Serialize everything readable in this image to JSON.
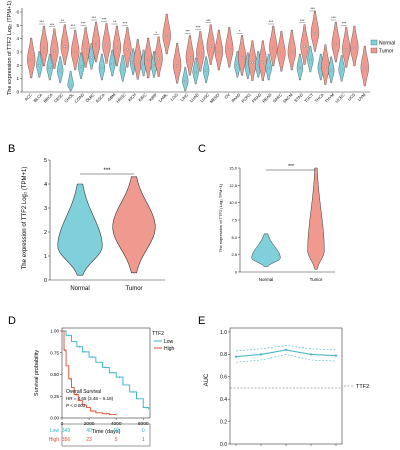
{
  "colors": {
    "normal": "#7fd0db",
    "tumor": "#f09a8f",
    "axis": "#333333",
    "km_low": "#2fb3c6",
    "km_high": "#e24a33",
    "auc_line": "#4fb7c7"
  },
  "panels": {
    "A": {
      "letter": "A"
    },
    "B": {
      "letter": "B"
    },
    "C": {
      "letter": "C"
    },
    "D": {
      "letter": "D"
    },
    "E": {
      "letter": "E"
    }
  },
  "chart_data": [
    {
      "id": "A",
      "type": "violin",
      "ylabel": "The expression of TTF2 Log₂ (TPM+1)",
      "legend": {
        "position": "right",
        "entries": [
          "Normal",
          "Tumor"
        ]
      },
      "yticks": [
        "0",
        "1",
        "2",
        "3",
        "4",
        "5",
        "6"
      ],
      "ylim": [
        0,
        6
      ],
      "categories": [
        "ACC",
        "BLCA",
        "BRCA",
        "CESC",
        "CHOL",
        "COAD",
        "DLBC",
        "ESCA",
        "GBM",
        "HNSC",
        "KICH",
        "KIRC",
        "KIRP",
        "LAML",
        "LGG",
        "LIHC",
        "LUAD",
        "LUSC",
        "MESO",
        "OV",
        "PAAD",
        "PCPG",
        "PRAD",
        "READ",
        "SARC",
        "SKCM",
        "STAD",
        "TGCT",
        "THCA",
        "THYM",
        "UCEC",
        "UCS",
        "UVM"
      ],
      "groups": [
        {
          "cat": "ACC",
          "sig": "",
          "normal": null,
          "tumor": 2.4
        },
        {
          "cat": "BLCA",
          "sig": "***",
          "normal": 2.0,
          "tumor": 3.3
        },
        {
          "cat": "BRCA",
          "sig": "***",
          "normal": 1.8,
          "tumor": 3.1
        },
        {
          "cat": "CESC",
          "sig": "**",
          "normal": 1.6,
          "tumor": 3.4
        },
        {
          "cat": "CHOL",
          "sig": "***",
          "normal": 0.5,
          "tumor": 3.0
        },
        {
          "cat": "COAD",
          "sig": "***",
          "normal": 1.9,
          "tumor": 3.2
        },
        {
          "cat": "DLBC",
          "sig": "***",
          "normal": 2.6,
          "tumor": 3.6
        },
        {
          "cat": "ESCA",
          "sig": "***",
          "normal": 1.8,
          "tumor": 3.5
        },
        {
          "cat": "GBM",
          "sig": "**",
          "normal": 2.1,
          "tumor": 3.3
        },
        {
          "cat": "HNSC",
          "sig": "***",
          "normal": 1.7,
          "tumor": 3.2
        },
        {
          "cat": "KICH",
          "sig": "",
          "normal": 2.2,
          "tumor": 2.3
        },
        {
          "cat": "KIRC",
          "sig": "",
          "normal": 2.1,
          "tumor": 2.4
        },
        {
          "cat": "KIRP",
          "sig": "*",
          "normal": 2.0,
          "tumor": 2.5
        },
        {
          "cat": "LAML",
          "sig": "",
          "normal": null,
          "tumor": 4.2
        },
        {
          "cat": "LGG",
          "sig": "",
          "normal": null,
          "tumor": 2.0
        },
        {
          "cat": "LIHC",
          "sig": "***",
          "normal": 0.8,
          "tumor": 2.6
        },
        {
          "cat": "LUAD",
          "sig": "***",
          "normal": 1.5,
          "tumor": 2.9
        },
        {
          "cat": "LUSC",
          "sig": "***",
          "normal": 1.6,
          "tumor": 3.4
        },
        {
          "cat": "MESO",
          "sig": "",
          "normal": null,
          "tumor": 3.0
        },
        {
          "cat": "OV",
          "sig": "",
          "normal": null,
          "tumor": 3.2
        },
        {
          "cat": "PAAD",
          "sig": "*",
          "normal": 2.0,
          "tumor": 2.6
        },
        {
          "cat": "PCPG",
          "sig": "",
          "normal": 1.9,
          "tumor": 2.2
        },
        {
          "cat": "PRAD",
          "sig": "",
          "normal": 2.0,
          "tumor": 2.2
        },
        {
          "cat": "READ",
          "sig": "***",
          "normal": 1.8,
          "tumor": 3.3
        },
        {
          "cat": "SARC",
          "sig": "",
          "normal": null,
          "tumor": 2.9
        },
        {
          "cat": "SKCM",
          "sig": "",
          "normal": null,
          "tumor": 3.0
        },
        {
          "cat": "STAD",
          "sig": "***",
          "normal": 1.8,
          "tumor": 3.4
        },
        {
          "cat": "TGCT",
          "sig": "***",
          "normal": 2.4,
          "tumor": 4.4
        },
        {
          "cat": "THCA",
          "sig": "",
          "normal": 1.8,
          "tumor": 1.9
        },
        {
          "cat": "THYM",
          "sig": "***",
          "normal": 1.6,
          "tumor": 3.6
        },
        {
          "cat": "UCEC",
          "sig": "***",
          "normal": 1.7,
          "tumor": 3.2
        },
        {
          "cat": "UCS",
          "sig": "",
          "normal": null,
          "tumor": 3.3
        },
        {
          "cat": "UVM",
          "sig": "",
          "normal": null,
          "tumor": 1.8
        }
      ]
    },
    {
      "id": "B",
      "type": "violin",
      "ylabel": "The expression of TTF2 Log₂ (TPM+1)",
      "yticks": [
        "0",
        "1",
        "2",
        "3",
        "4",
        "5"
      ],
      "ylim": [
        0,
        5
      ],
      "categories": [
        "Normal",
        "Tumor"
      ],
      "median": [
        1.4,
        2.2
      ],
      "range": [
        [
          0.2,
          4.0
        ],
        [
          0.3,
          4.3
        ]
      ],
      "sig": "***"
    },
    {
      "id": "C",
      "type": "violin",
      "ylabel": "The expression of TTF2 (Log₂ TPM+1)",
      "yticks": [
        "0",
        "2.5",
        "5.0",
        "7.5",
        "10.0",
        "12.5",
        "15.0"
      ],
      "ylim": [
        0,
        15
      ],
      "categories": [
        "Normal",
        "Tumor"
      ],
      "median": [
        2.0,
        3.0
      ],
      "range": [
        [
          0.8,
          5.5
        ],
        [
          0.4,
          15.0
        ]
      ],
      "sig": "***"
    },
    {
      "id": "D",
      "type": "line",
      "ylabel": "Survival probability",
      "xlabel": "Time (days)",
      "xticks": [
        "0",
        "2000",
        "4000",
        "6000"
      ],
      "yticks": [
        "0.00",
        "0.25",
        "0.50",
        "0.75",
        "1.00"
      ],
      "xlim": [
        0,
        6500
      ],
      "ylim": [
        0,
        1
      ],
      "legend": {
        "title": "TTF2",
        "entries": [
          "Low",
          "High"
        ]
      },
      "annotations": [
        "Overall Survival",
        "HR = 4.65 (3.48 – 6.18)",
        "P < 0.001"
      ],
      "series": [
        {
          "name": "Low",
          "x": [
            0,
            300,
            700,
            1100,
            1500,
            2000,
            2500,
            3000,
            3500,
            4000,
            4500,
            5000,
            5500,
            6000,
            6400
          ],
          "y": [
            1.0,
            0.95,
            0.88,
            0.82,
            0.76,
            0.7,
            0.64,
            0.58,
            0.52,
            0.47,
            0.38,
            0.3,
            0.22,
            0.12,
            0.1
          ]
        },
        {
          "name": "High",
          "x": [
            0,
            150,
            300,
            500,
            700,
            900,
            1200,
            1500,
            1800,
            2100,
            2500,
            3000,
            3500,
            4000
          ],
          "y": [
            1.0,
            0.78,
            0.6,
            0.45,
            0.35,
            0.27,
            0.2,
            0.15,
            0.12,
            0.08,
            0.06,
            0.05,
            0.04,
            0.04
          ]
        }
      ],
      "risk_table": {
        "rows": [
          {
            "label": "Low",
            "values": [
              "349",
              "40",
              "10",
              "0"
            ]
          },
          {
            "label": "High",
            "values": [
              "356",
              "23",
              "5",
              "1"
            ]
          }
        ]
      }
    },
    {
      "id": "E",
      "type": "line",
      "ylabel": "AUC",
      "yticks": [
        "0.0",
        "0.2",
        "0.4",
        "0.6",
        "0.8",
        "1.0"
      ],
      "ylim": [
        0,
        1
      ],
      "legend": {
        "entries": [
          "TTF2"
        ]
      },
      "x": [
        1,
        2,
        3,
        4,
        5
      ],
      "series": [
        {
          "name": "TTF2",
          "values": [
            0.78,
            0.8,
            0.84,
            0.8,
            0.79
          ],
          "upper": [
            0.83,
            0.85,
            0.88,
            0.85,
            0.84
          ],
          "lower": [
            0.73,
            0.75,
            0.8,
            0.75,
            0.74
          ]
        }
      ],
      "reference": 0.5
    }
  ]
}
